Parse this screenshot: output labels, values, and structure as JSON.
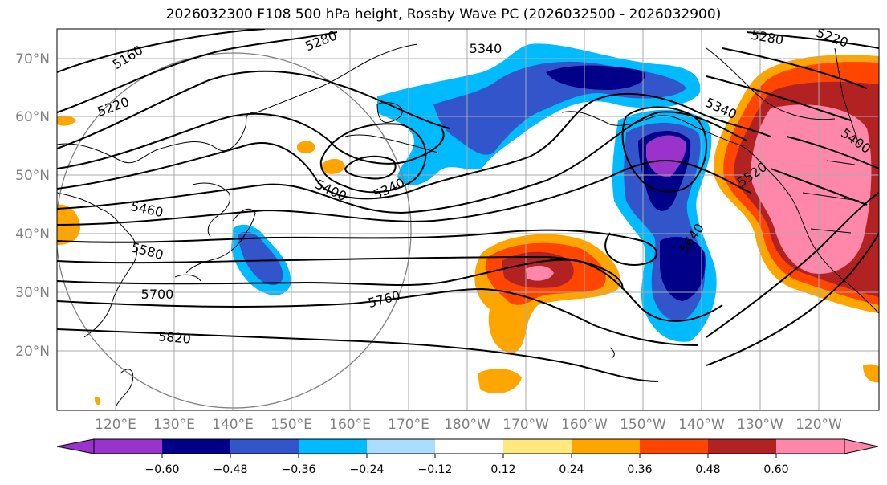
{
  "title": "2026032300 F108 500 hPa height, Rossby Wave PC (2026032500 - 2026032900)",
  "map": {
    "lon_range": [
      110,
      -115
    ],
    "lat_range": [
      10,
      75
    ],
    "lat_tick_labels": [
      "20°N",
      "30°N",
      "40°N",
      "50°N",
      "60°N",
      "70°N"
    ],
    "lon_tick_labels": [
      "120°E",
      "130°E",
      "140°E",
      "150°E",
      "160°E",
      "170°E",
      "180°W",
      "170°W",
      "160°W",
      "150°W",
      "140°W",
      "130°W",
      "120°W"
    ],
    "label_color": "#808080",
    "grid": true
  },
  "contours": {
    "field": "500 hPa height",
    "labels": [
      "5160",
      "5220",
      "5280",
      "5340",
      "5280",
      "5220",
      "5340",
      "5400",
      "5340",
      "5400",
      "5460",
      "5520",
      "5580",
      "5640",
      "5700",
      "5760",
      "5820"
    ]
  },
  "shading": {
    "field": "Rossby Wave PC",
    "levels": [
      "−0.60",
      "−0.48",
      "−0.36",
      "−0.24",
      "−0.12",
      "0.12",
      "0.24",
      "0.36",
      "0.48",
      "0.60"
    ],
    "colors": [
      "#9933cc",
      "#000088",
      "#3355cc",
      "#00bbff",
      "#aaddff",
      "#ffffff",
      "#ffe97f",
      "#ffa500",
      "#ff4500",
      "#b22222",
      "#ff88aa"
    ]
  }
}
